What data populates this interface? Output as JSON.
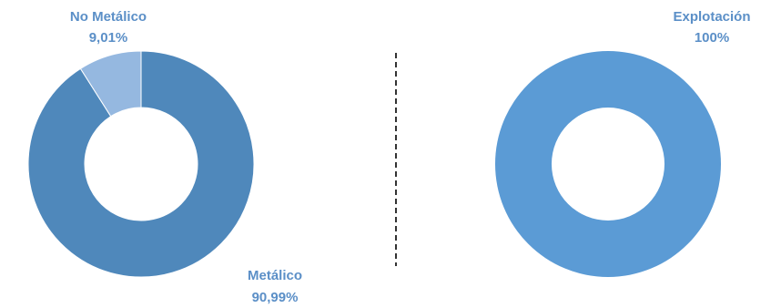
{
  "colors": {
    "metalico": "#4f88bb",
    "no_metalico": "#95b8e0",
    "explotacion": "#5b9bd5",
    "label": "#5b8fc7",
    "divider": "#333333"
  },
  "chart_data": [
    {
      "type": "pie",
      "variant": "donut",
      "slices": [
        {
          "label": "Metálico",
          "value": 90.99,
          "value_label": "90,99%"
        },
        {
          "label": "No Metálico",
          "value": 9.01,
          "value_label": "9,01%"
        }
      ]
    },
    {
      "type": "pie",
      "variant": "donut",
      "slices": [
        {
          "label": "Explotación",
          "value": 100,
          "value_label": "100%"
        }
      ]
    }
  ]
}
